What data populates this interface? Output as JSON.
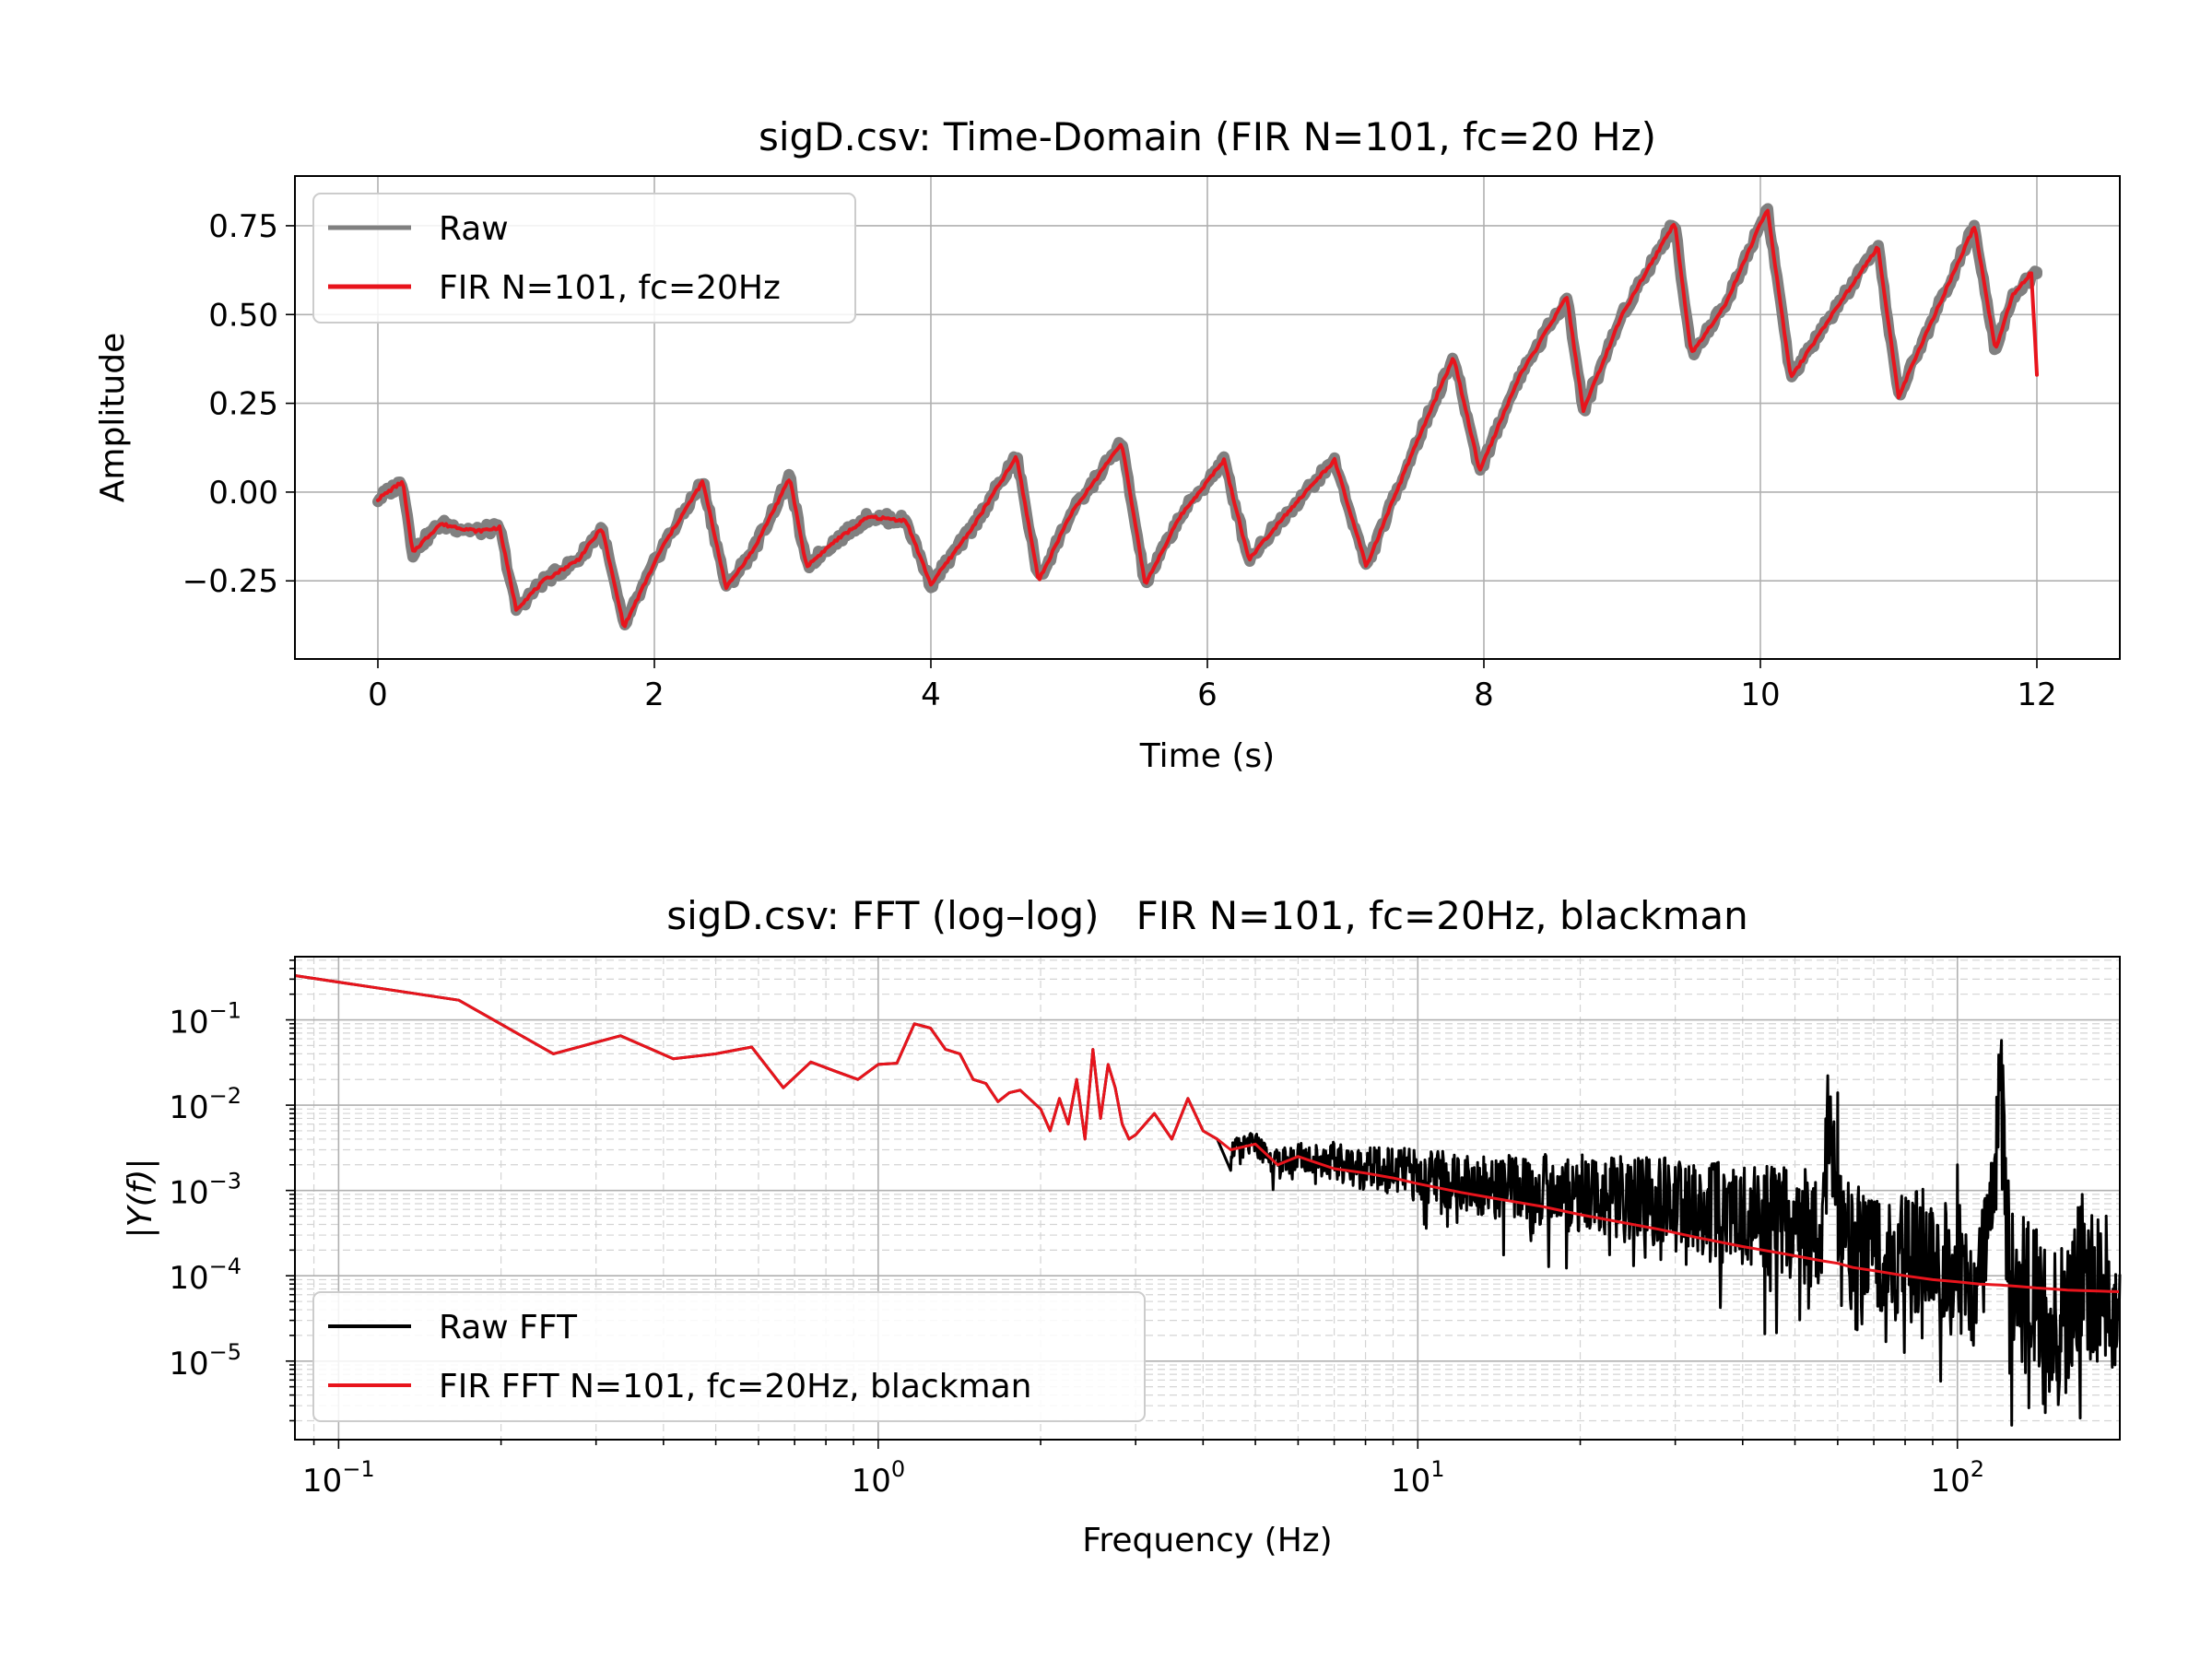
{
  "chart_data": [
    {
      "type": "line",
      "title": "sigD.csv: Time-Domain (FIR N=101, fc=20 Hz)",
      "xlabel": "Time (s)",
      "ylabel": "Amplitude",
      "xlim": [
        -0.6,
        12.6
      ],
      "ylim": [
        -0.47,
        0.89
      ],
      "xticks": [
        0,
        2,
        4,
        6,
        8,
        10,
        12
      ],
      "xtick_labels": [
        "0",
        "2",
        "4",
        "6",
        "8",
        "10",
        "12"
      ],
      "yticks": [
        -0.25,
        0.0,
        0.25,
        0.5,
        0.75
      ],
      "ytick_labels": [
        "−0.25",
        "0.00",
        "0.25",
        "0.50",
        "0.75"
      ],
      "grid": true,
      "legend_position": "top-left",
      "series": [
        {
          "name": "Raw",
          "color": "#808080",
          "x": [
            0.0,
            0.18,
            0.25,
            0.45,
            0.72,
            0.88,
            1.0,
            1.2,
            1.45,
            1.62,
            1.78,
            2.05,
            2.35,
            2.52,
            2.72,
            2.98,
            3.1,
            3.3,
            3.55,
            3.82,
            4.0,
            4.3,
            4.62,
            4.78,
            5.0,
            5.38,
            5.55,
            5.8,
            6.12,
            6.3,
            6.55,
            6.92,
            7.15,
            7.45,
            7.78,
            7.97,
            8.25,
            8.6,
            8.72,
            9.0,
            9.38,
            9.5,
            9.75,
            10.05,
            10.22,
            10.5,
            10.85,
            11.0,
            11.25,
            11.55,
            11.7,
            11.82,
            12.0
          ],
          "y": [
            -0.02,
            0.03,
            -0.17,
            -0.09,
            -0.11,
            -0.1,
            -0.33,
            -0.25,
            -0.19,
            -0.1,
            -0.38,
            -0.16,
            0.03,
            -0.27,
            -0.16,
            0.04,
            -0.21,
            -0.14,
            -0.07,
            -0.08,
            -0.26,
            -0.1,
            0.1,
            -0.25,
            -0.07,
            0.14,
            -0.26,
            -0.07,
            0.09,
            -0.19,
            -0.07,
            0.09,
            -0.21,
            0.08,
            0.38,
            0.06,
            0.32,
            0.55,
            0.23,
            0.5,
            0.76,
            0.39,
            0.53,
            0.8,
            0.32,
            0.49,
            0.69,
            0.27,
            0.49,
            0.75,
            0.4,
            0.55,
            0.62
          ]
        },
        {
          "name": "FIR N=101, fc=20Hz",
          "color": "#e8141c",
          "x": [
            0.0,
            0.18,
            0.25,
            0.45,
            0.72,
            0.88,
            1.0,
            1.2,
            1.45,
            1.62,
            1.78,
            2.05,
            2.35,
            2.52,
            2.72,
            2.98,
            3.1,
            3.3,
            3.55,
            3.82,
            4.0,
            4.3,
            4.62,
            4.78,
            5.0,
            5.38,
            5.55,
            5.8,
            6.12,
            6.3,
            6.55,
            6.92,
            7.15,
            7.45,
            7.78,
            7.97,
            8.25,
            8.6,
            8.72,
            9.0,
            9.38,
            9.5,
            9.75,
            10.05,
            10.22,
            10.5,
            10.85,
            11.0,
            11.25,
            11.55,
            11.7,
            11.82,
            11.96,
            12.0
          ],
          "y": [
            -0.02,
            0.03,
            -0.17,
            -0.09,
            -0.11,
            -0.1,
            -0.33,
            -0.25,
            -0.19,
            -0.1,
            -0.38,
            -0.16,
            0.03,
            -0.27,
            -0.16,
            0.04,
            -0.21,
            -0.14,
            -0.07,
            -0.08,
            -0.26,
            -0.1,
            0.1,
            -0.25,
            -0.07,
            0.14,
            -0.26,
            -0.07,
            0.09,
            -0.19,
            -0.07,
            0.09,
            -0.21,
            0.08,
            0.38,
            0.06,
            0.32,
            0.55,
            0.23,
            0.5,
            0.76,
            0.39,
            0.53,
            0.8,
            0.32,
            0.49,
            0.69,
            0.27,
            0.49,
            0.75,
            0.4,
            0.55,
            0.62,
            0.33
          ]
        }
      ]
    },
    {
      "type": "line",
      "title": "sigD.csv: FFT (log–log)   FIR N=101, fc=20Hz, blackman",
      "xlabel": "Frequency (Hz)",
      "ylabel": "|Y(f)|",
      "xscale": "log",
      "yscale": "log",
      "xlim": [
        0.083,
        200
      ],
      "ylim": [
        1.2e-06,
        0.55
      ],
      "xticks": [
        0.1,
        1,
        10,
        100
      ],
      "xtick_labels": [
        {
          "base": "10",
          "exp": "−1"
        },
        {
          "base": "10",
          "exp": "0"
        },
        {
          "base": "10",
          "exp": "1"
        },
        {
          "base": "10",
          "exp": "2"
        }
      ],
      "yticks": [
        1e-05,
        0.0001,
        0.001,
        0.01,
        0.1
      ],
      "ytick_labels": [
        {
          "base": "10",
          "exp": "−5"
        },
        {
          "base": "10",
          "exp": "−4"
        },
        {
          "base": "10",
          "exp": "−3"
        },
        {
          "base": "10",
          "exp": "−2"
        },
        {
          "base": "10",
          "exp": "−1"
        }
      ],
      "grid": true,
      "legend_position": "bottom-left",
      "series": [
        {
          "name": "Raw FFT",
          "color": "#000000",
          "x": [
            0.083,
            0.167,
            0.25,
            0.333,
            0.417,
            0.5,
            0.583,
            0.667,
            0.75,
            0.833,
            0.917,
            1.0,
            1.083,
            1.167,
            1.25,
            1.333,
            1.417,
            1.5,
            1.583,
            1.667,
            1.75,
            1.833,
            2.0,
            2.083,
            2.167,
            2.25,
            2.333,
            2.417,
            2.5,
            2.583,
            2.667,
            2.75,
            2.833,
            2.917,
            3.0,
            3.25,
            3.5,
            3.75,
            4.0,
            4.25,
            4.5,
            5.0,
            5.5,
            6.0,
            7.0,
            8.0,
            9.0,
            10.0,
            12.0,
            14.0,
            17.0,
            20.0,
            24.0,
            28.0,
            33.0,
            40.0,
            48.0,
            56.0,
            58.0,
            60.0,
            62.0,
            64.0,
            70.0,
            80.0,
            90.0,
            100.0,
            110.0,
            115.0,
            120.0,
            125.0,
            130.0,
            140.0,
            150.0,
            160.0,
            170.0,
            185.0,
            200.0
          ],
          "y": [
            0.33,
            0.17,
            0.04,
            0.065,
            0.035,
            0.04,
            0.048,
            0.016,
            0.032,
            0.025,
            0.02,
            0.03,
            0.031,
            0.09,
            0.08,
            0.045,
            0.04,
            0.02,
            0.018,
            0.011,
            0.014,
            0.015,
            0.009,
            0.005,
            0.012,
            0.006,
            0.02,
            0.004,
            0.045,
            0.007,
            0.03,
            0.016,
            0.006,
            0.004,
            0.0045,
            0.008,
            0.004,
            0.012,
            0.005,
            0.004,
            0.003,
            0.0035,
            0.002,
            0.0025,
            0.0022,
            0.0018,
            0.0017,
            0.0015,
            0.0013,
            0.0011,
            0.001,
            0.0009,
            0.0008,
            0.0007,
            0.0006,
            0.0005,
            0.0004,
            0.00035,
            0.014,
            0.0003,
            0.00025,
            0.0002,
            0.00022,
            0.00015,
            0.00018,
            0.00012,
            0.0001,
            0.0002,
            0.022,
            0.0001,
            8e-05,
            5e-05,
            2e-05,
            3e-05,
            0.0001,
            7e-05,
            4e-05
          ]
        },
        {
          "name": "FIR FFT N=101, fc=20Hz, blackman",
          "color": "#e8141c",
          "x": [
            0.083,
            0.167,
            0.25,
            0.333,
            0.417,
            0.5,
            0.583,
            0.667,
            0.75,
            0.833,
            0.917,
            1.0,
            1.083,
            1.167,
            1.25,
            1.333,
            1.417,
            1.5,
            1.583,
            1.667,
            1.75,
            1.833,
            2.0,
            2.083,
            2.167,
            2.25,
            2.333,
            2.417,
            2.5,
            2.583,
            2.667,
            2.75,
            2.833,
            2.917,
            3.0,
            3.25,
            3.5,
            3.75,
            4.0,
            4.25,
            4.5,
            5.0,
            5.5,
            6.0,
            7.0,
            8.0,
            9.0,
            10.0,
            12.0,
            14.0,
            17.0,
            20.0,
            24.0,
            28.0,
            33.0,
            40.0,
            48.0,
            56.0,
            60.0,
            64.0,
            70.0,
            80.0,
            90.0,
            100.0,
            110.0,
            120.0,
            130.0,
            140.0,
            150.0,
            160.0,
            170.0,
            185.0,
            200.0
          ],
          "y": [
            0.33,
            0.17,
            0.04,
            0.065,
            0.035,
            0.04,
            0.048,
            0.016,
            0.032,
            0.025,
            0.02,
            0.03,
            0.031,
            0.09,
            0.08,
            0.045,
            0.04,
            0.02,
            0.018,
            0.011,
            0.014,
            0.015,
            0.009,
            0.005,
            0.012,
            0.006,
            0.02,
            0.004,
            0.045,
            0.007,
            0.03,
            0.016,
            0.006,
            0.004,
            0.0045,
            0.008,
            0.004,
            0.012,
            0.005,
            0.004,
            0.003,
            0.0035,
            0.002,
            0.0025,
            0.0018,
            0.0016,
            0.0014,
            0.0012,
            0.00095,
            0.0008,
            0.00065,
            0.00052,
            0.00042,
            0.00035,
            0.00028,
            0.00022,
            0.00018,
            0.00015,
            0.00014,
            0.000125,
            0.000115,
            0.0001,
            9e-05,
            8.5e-05,
            8e-05,
            7.8e-05,
            7.5e-05,
            7.2e-05,
            7e-05,
            6.8e-05,
            6.7e-05,
            6.6e-05,
            6.5e-05
          ]
        }
      ]
    }
  ]
}
